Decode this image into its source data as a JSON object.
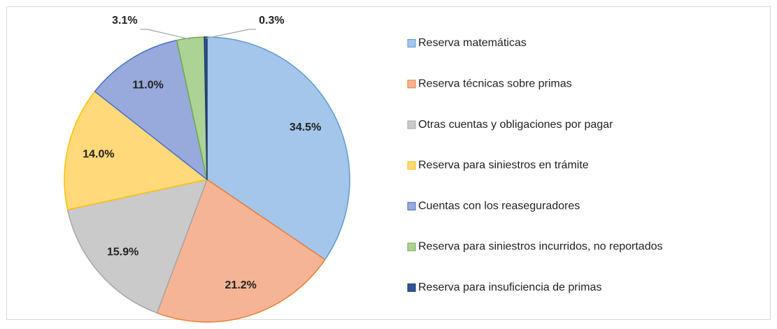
{
  "chart_data": {
    "type": "pie",
    "categories": [
      "Reserva matemáticas",
      "Reserva técnicas sobre primas",
      "Otras cuentas y obligaciones por pagar",
      "Reserva para siniestros en trámite",
      "Cuentas con los reaseguradores",
      "Reserva para siniestros incurridos, no reportados",
      "Reserva para insuficiencia de primas"
    ],
    "values": [
      34.5,
      21.2,
      15.9,
      14.0,
      11.0,
      3.1,
      0.3
    ],
    "value_labels": [
      "34.5%",
      "21.2%",
      "15.9%",
      "14.0%",
      "11.0%",
      "3.1%",
      "0.3%"
    ],
    "colors": [
      "#a4c6ea",
      "#f6b496",
      "#cacaca",
      "#ffd97a",
      "#98a9dc",
      "#add296",
      "#2f5597"
    ],
    "edge_colors": [
      "#5b9bd5",
      "#ed7d31",
      "#a5a5a5",
      "#ffc000",
      "#4472c4",
      "#70ad47",
      "#1f3864"
    ],
    "legend": "right"
  }
}
